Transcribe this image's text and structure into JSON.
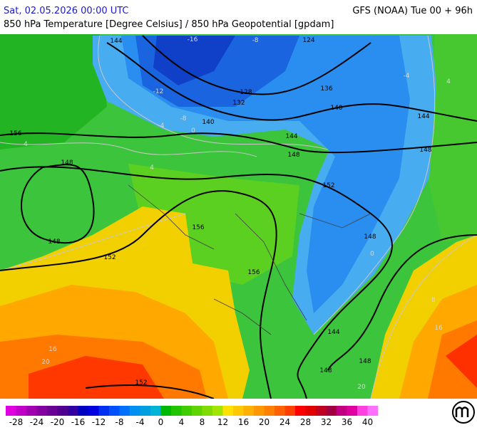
{
  "header": {
    "left": "Sat, 02.05.2026 00:00 UTC",
    "right": "GFS (NOAA) Tue 00 + 96h",
    "subtitle": "850 hPa Temperature [Degree Celsius] / 850 hPa Geopotential [gpdam]"
  },
  "map": {
    "contour_labels": [
      144,
      124,
      128,
      136,
      132,
      140,
      140,
      144,
      144,
      148,
      148,
      156,
      148,
      152,
      156,
      148,
      148,
      152,
      156,
      144,
      148,
      148,
      152
    ],
    "isotherm_labels": [
      -16,
      -8,
      -12,
      -8,
      -4,
      0,
      4,
      -4,
      4,
      0,
      8,
      16,
      16,
      20,
      20,
      4
    ]
  },
  "colorbar": {
    "range": [
      -30,
      42
    ],
    "ticks": [
      -28,
      -24,
      -20,
      -16,
      -12,
      -8,
      -4,
      0,
      4,
      8,
      12,
      16,
      20,
      24,
      28,
      32,
      36,
      40
    ],
    "colors": [
      "#e000e0",
      "#c000c8",
      "#a000b0",
      "#8400a0",
      "#6a0094",
      "#500090",
      "#3000a0",
      "#0000c0",
      "#0000e0",
      "#0030f0",
      "#0050ff",
      "#0070ff",
      "#0090f0",
      "#00a0e0",
      "#00b4d8",
      "#00b800",
      "#20c400",
      "#40cc00",
      "#60d400",
      "#80dc00",
      "#a0e400",
      "#ffe000",
      "#ffc800",
      "#ffb000",
      "#ff9800",
      "#ff8000",
      "#ff6000",
      "#ff4000",
      "#ff0000",
      "#e00000",
      "#c00020",
      "#a00040",
      "#c00080",
      "#e000a0",
      "#ff40e0",
      "#ff70ff"
    ]
  }
}
